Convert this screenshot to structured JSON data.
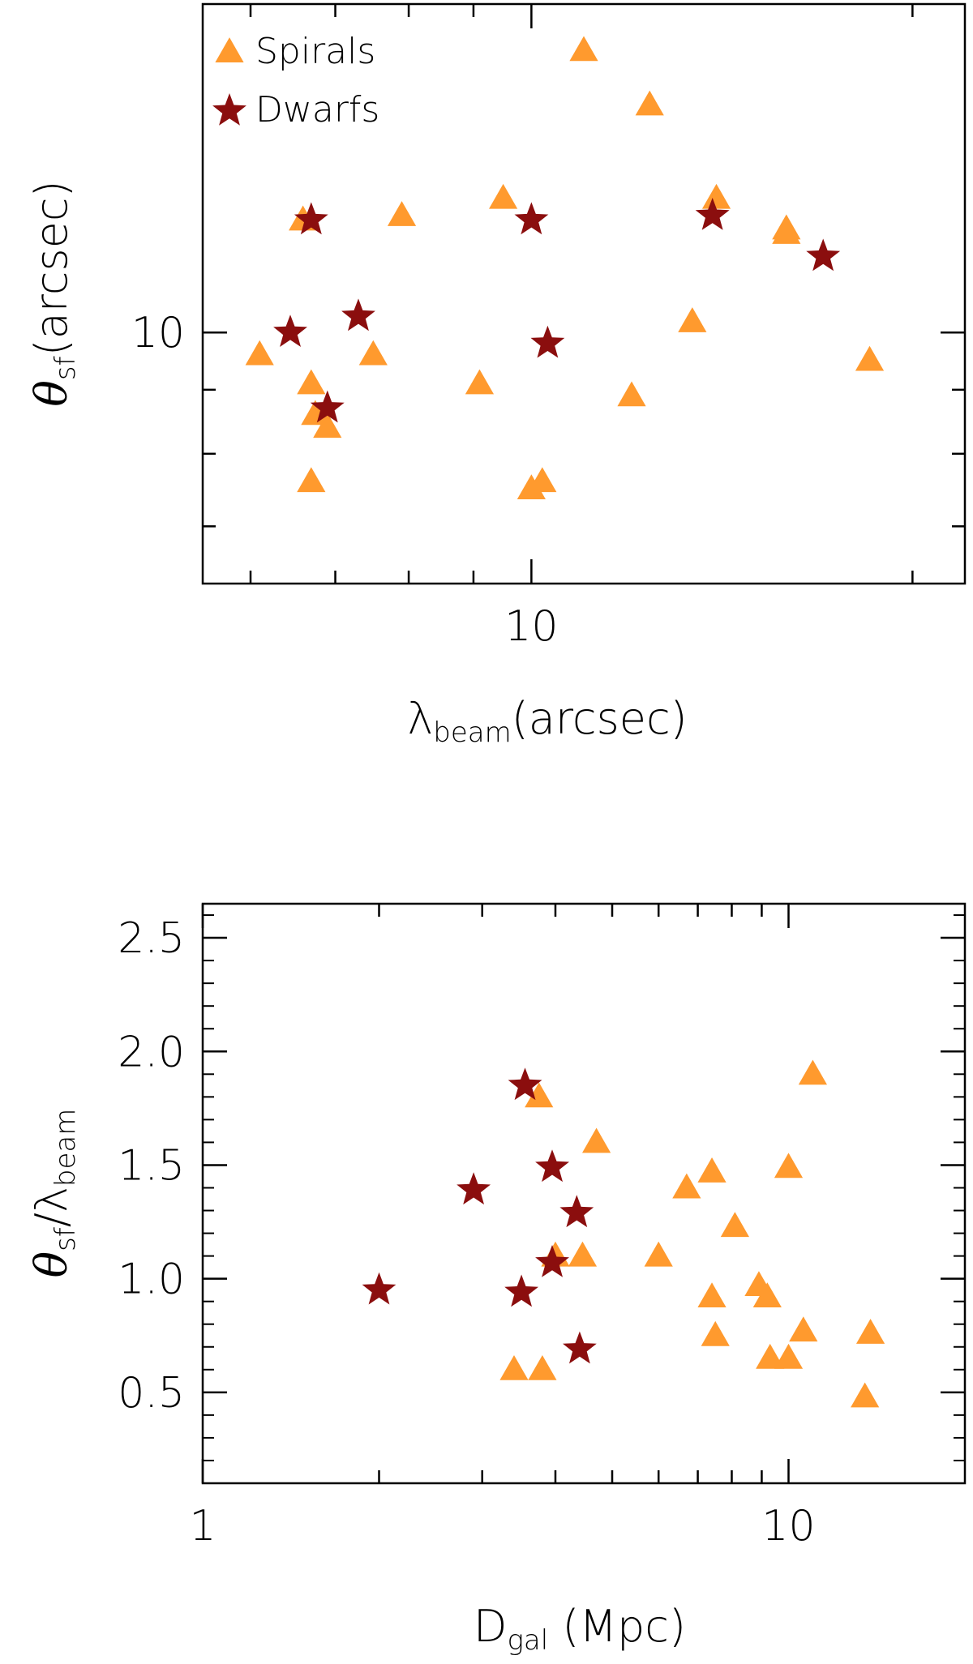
{
  "chart_data": [
    {
      "type": "scatter",
      "title": "",
      "xscale": "log",
      "yscale": "log",
      "xlim": [
        5.5,
        22
      ],
      "ylim": [
        6.3,
        18.3
      ],
      "xlabel_main": "λ",
      "xlabel_sub": "beam",
      "xlabel_tail": "(arcsec)",
      "ylabel_main": "θ",
      "ylabel_sub": "sf",
      "ylabel_tail": "(arcsec)",
      "x_tick_labels": [
        {
          "value": 10,
          "label": "10"
        }
      ],
      "y_tick_labels": [
        {
          "value": 10,
          "label": "10"
        }
      ],
      "x_minor_ticks": [
        6,
        7,
        8,
        9,
        20
      ],
      "y_minor_ticks": [
        7,
        8,
        9
      ],
      "legend_position": "top-left",
      "series": [
        {
          "name": "Spirals",
          "marker": "triangle",
          "color": "#FF9A2E",
          "points": [
            [
              6.1,
              9.6
            ],
            [
              6.6,
              12.3
            ],
            [
              6.7,
              9.1
            ],
            [
              6.7,
              7.6
            ],
            [
              6.75,
              8.6
            ],
            [
              6.9,
              8.4
            ],
            [
              7.5,
              9.6
            ],
            [
              7.9,
              12.4
            ],
            [
              9.1,
              9.1
            ],
            [
              9.5,
              12.8
            ],
            [
              10.0,
              7.5
            ],
            [
              10.2,
              7.6
            ],
            [
              11.0,
              16.8
            ],
            [
              12.0,
              8.9
            ],
            [
              12.4,
              15.2
            ],
            [
              13.4,
              10.2
            ],
            [
              14.0,
              12.8
            ],
            [
              15.9,
              12.1
            ],
            [
              15.9,
              12.0
            ],
            [
              18.5,
              9.5
            ]
          ]
        },
        {
          "name": "Dwarfs",
          "marker": "star",
          "color": "#8B0E0E",
          "points": [
            [
              6.45,
              10.0
            ],
            [
              6.7,
              12.3
            ],
            [
              6.9,
              8.7
            ],
            [
              7.3,
              10.3
            ],
            [
              10.0,
              12.3
            ],
            [
              10.3,
              9.8
            ],
            [
              13.9,
              12.4
            ],
            [
              17.0,
              11.5
            ]
          ]
        }
      ]
    },
    {
      "type": "scatter",
      "title": "",
      "xscale": "log",
      "yscale": "linear",
      "xlim": [
        1,
        20
      ],
      "ylim": [
        0.1,
        2.65
      ],
      "xlabel_main": "D",
      "xlabel_sub": "gal",
      "xlabel_tail": " (Mpc)",
      "ylabel_main": "θ",
      "ylabel_sub": "sf",
      "ylabel_mid": "/λ",
      "ylabel_sub2": "beam",
      "x_tick_labels": [
        {
          "value": 1,
          "label": "1"
        },
        {
          "value": 10,
          "label": "10"
        }
      ],
      "y_tick_labels": [
        {
          "value": 0.5,
          "label": "0.5"
        },
        {
          "value": 1.0,
          "label": "1.0"
        },
        {
          "value": 1.5,
          "label": "1.5"
        },
        {
          "value": 2.0,
          "label": "2.0"
        },
        {
          "value": 2.5,
          "label": "2.5"
        }
      ],
      "x_minor_ticks": [
        2,
        3,
        4,
        5,
        6,
        7,
        8,
        9
      ],
      "y_minor_ticks": [],
      "series": [
        {
          "name": "Spirals",
          "marker": "triangle",
          "color": "#FF9A2E",
          "points": [
            [
              3.4,
              0.6
            ],
            [
              3.8,
              0.6
            ],
            [
              3.75,
              1.8
            ],
            [
              4.0,
              1.1
            ],
            [
              4.45,
              1.1
            ],
            [
              4.7,
              1.6
            ],
            [
              6.0,
              1.1
            ],
            [
              6.7,
              1.4
            ],
            [
              7.4,
              0.92
            ],
            [
              7.5,
              0.75
            ],
            [
              7.4,
              1.47
            ],
            [
              8.1,
              1.23
            ],
            [
              8.9,
              0.97
            ],
            [
              9.2,
              0.92
            ],
            [
              9.3,
              0.65
            ],
            [
              10.0,
              0.65
            ],
            [
              10.0,
              1.49
            ],
            [
              10.6,
              0.77
            ],
            [
              11.0,
              1.9
            ],
            [
              13.5,
              0.48
            ],
            [
              13.8,
              0.76
            ]
          ]
        },
        {
          "name": "Dwarfs",
          "marker": "star",
          "color": "#8B0E0E",
          "points": [
            [
              2.0,
              0.95
            ],
            [
              2.9,
              1.39
            ],
            [
              3.55,
              1.85
            ],
            [
              3.5,
              0.94
            ],
            [
              3.95,
              1.49
            ],
            [
              3.95,
              1.07
            ],
            [
              4.35,
              1.29
            ],
            [
              4.4,
              0.69
            ]
          ]
        }
      ]
    }
  ]
}
